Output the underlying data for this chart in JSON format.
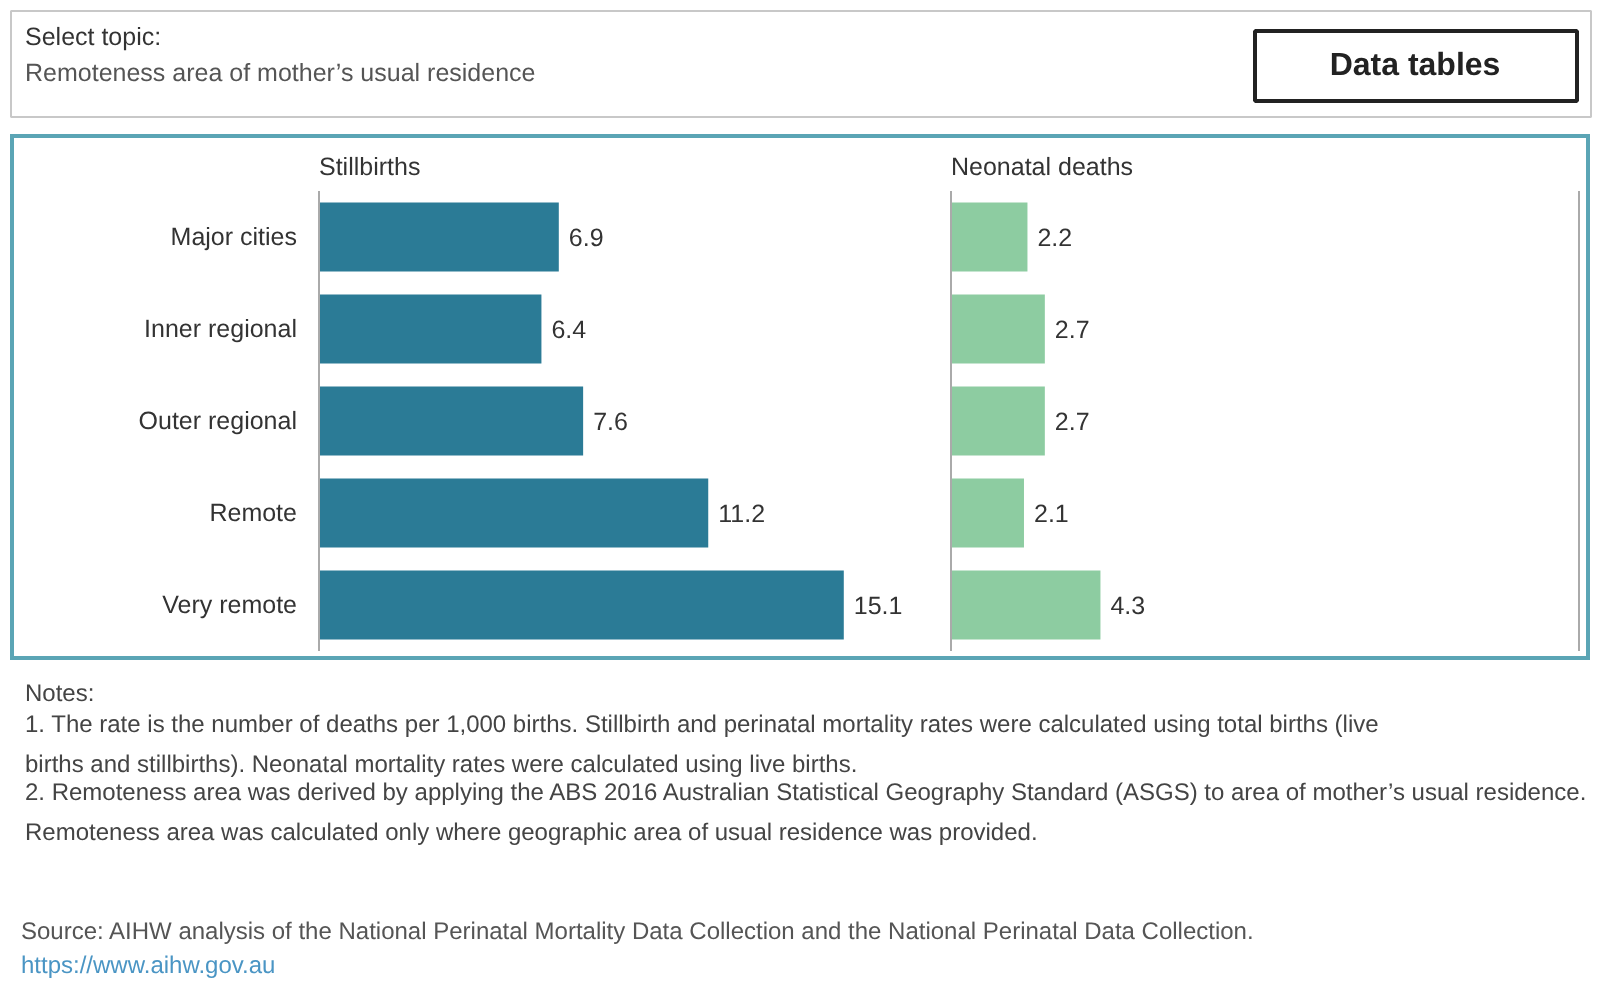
{
  "chart_data": [
    {
      "type": "bar",
      "orientation": "horizontal",
      "title": "Stillbirths",
      "categories": [
        "Major cities",
        "Inner regional",
        "Outer regional",
        "Remote",
        "Very remote"
      ],
      "values": [
        6.9,
        6.4,
        7.6,
        11.2,
        15.1
      ],
      "color": "#2b7b96",
      "data_labels": true,
      "tick_labels": "y",
      "annotations": [
        "Select topic:",
        "Remoteness area of mother’s usual residence",
        "Data tables"
      ]
    },
    {
      "type": "bar",
      "orientation": "horizontal",
      "title": "Neonatal deaths",
      "categories": [
        "Major cities",
        "Inner regional",
        "Outer regional",
        "Remote",
        "Very remote"
      ],
      "values": [
        2.2,
        2.7,
        2.7,
        2.1,
        4.3
      ],
      "color": "#8dcca1",
      "data_labels": true,
      "tick_labels": false,
      "annotations": [
        "Notes:",
        "1. The rate is the number of deaths per 1,000 births. Stillbirth and perinatal mortality rates were calculated using total births (live births and stillbirths). Neonatal mortality rates were calculated using live births.",
        "2. Remoteness area was derived by applying the ABS 2016 Australian Statistical Geography Standard (ASGS) to area of mother’s usual residence. Remoteness area was calculated only where geographic area of usual residence was provided.",
        "Source: AIHW analysis of the National Perinatal Mortality Data Collection and the National Perinatal Data Collection.",
        "https://www.aihw.gov.au"
      ]
    }
  ]
}
